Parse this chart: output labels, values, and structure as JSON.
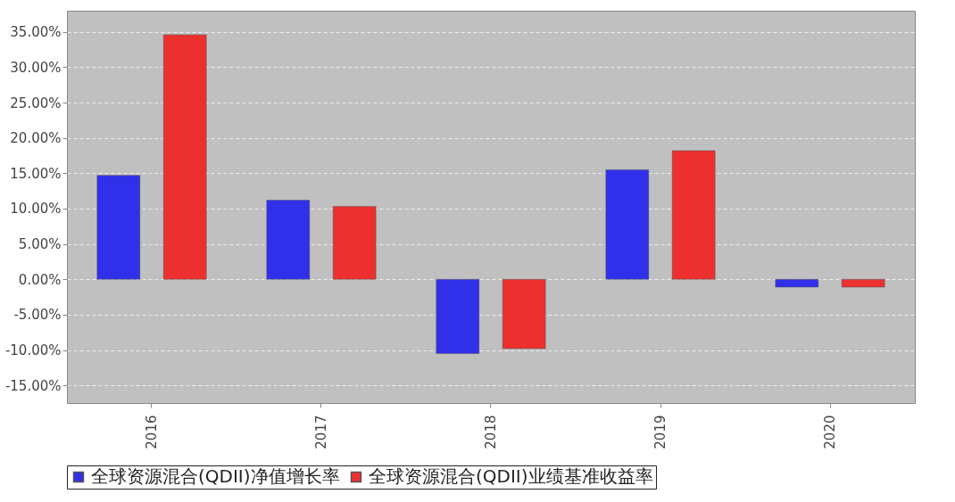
{
  "chart_data": {
    "type": "bar",
    "categories": [
      "2016",
      "2017",
      "2018",
      "2019",
      "2020"
    ],
    "series": [
      {
        "name": "全球资源混合(QDII)净值增长率",
        "color": "#3030ea",
        "values": [
          14.7,
          11.2,
          -10.5,
          15.5,
          -1.1
        ]
      },
      {
        "name": "全球资源混合(QDII)业绩基准收益率",
        "color": "#ec3030",
        "values": [
          34.6,
          10.3,
          -9.8,
          18.2,
          -1.1
        ]
      }
    ],
    "ylim": [
      -17.5,
      38
    ],
    "yticks": [
      {
        "value": -15,
        "label": "-15.00%"
      },
      {
        "value": -10,
        "label": "-10.00%"
      },
      {
        "value": -5,
        "label": "-5.00%"
      },
      {
        "value": 0,
        "label": "0.00%"
      },
      {
        "value": 5,
        "label": "5.00%"
      },
      {
        "value": 10,
        "label": "10.00%"
      },
      {
        "value": 15,
        "label": "15.00%"
      },
      {
        "value": 20,
        "label": "20.00%"
      },
      {
        "value": 25,
        "label": "25.00%"
      },
      {
        "value": 30,
        "label": "30.00%"
      },
      {
        "value": 35,
        "label": "35.00%"
      }
    ],
    "grid": "y",
    "legend": "bottom"
  }
}
